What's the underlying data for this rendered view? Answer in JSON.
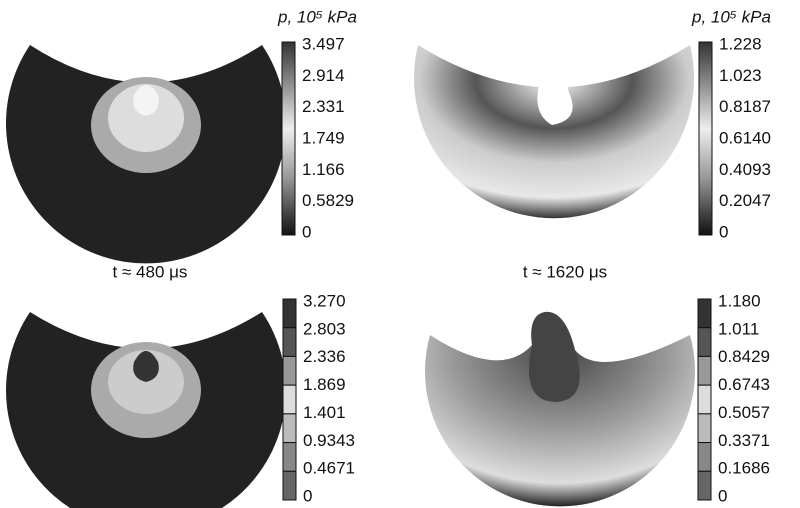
{
  "panels": [
    {
      "colorbar": {
        "label": "p, 10⁵ kPa",
        "ticks": [
          "3.497",
          "2.914",
          "2.331",
          "1.749",
          "1.166",
          "0.5829",
          "0"
        ]
      }
    },
    {
      "colorbar": {
        "label": "p, 10⁵ kPa",
        "ticks": [
          "1.228",
          "1.023",
          "0.8187",
          "0.6140",
          "0.4093",
          "0.2047",
          "0"
        ]
      }
    },
    {
      "time": "t ≈ 480 μs",
      "colorbar": {
        "ticks": [
          "3.270",
          "2.803",
          "2.336",
          "1.869",
          "1.401",
          "0.9343",
          "0.4671",
          "0"
        ]
      }
    },
    {
      "time": "t ≈ 1620 μs",
      "colorbar": {
        "ticks": [
          "1.180",
          "1.011",
          "0.8429",
          "0.6743",
          "0.5057",
          "0.3371",
          "0.1686",
          "0"
        ]
      }
    }
  ]
}
